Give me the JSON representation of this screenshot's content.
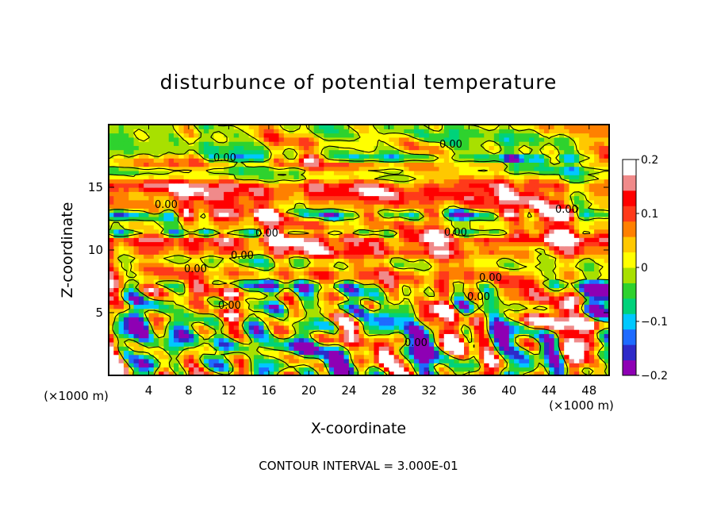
{
  "chart_data": {
    "type": "heatmap",
    "title": "disturbunce of potential temperature",
    "xlabel": "X-coordinate",
    "ylabel": "Z-coordinate",
    "xunit": "(×1000 m)",
    "yunit": "(×1000 m)",
    "x_ticks": [
      "4",
      "8",
      "12",
      "16",
      "20",
      "24",
      "28",
      "32",
      "36",
      "40",
      "44",
      "48"
    ],
    "y_ticks": [
      "5",
      "10",
      "15"
    ],
    "colorbar_ticks": [
      "0.2",
      "0.1",
      "0",
      "−0.1",
      "−0.2"
    ],
    "xlim": [
      0,
      50
    ],
    "ylim": [
      0,
      20
    ],
    "color_range": [
      -0.2,
      0.2
    ],
    "contour_label": "0.00",
    "footnote": "CONTOUR INTERVAL = 3.000E-01",
    "colors": [
      "#8e00b4",
      "#2e2ac8",
      "#1e6bff",
      "#00c8ff",
      "#00d27a",
      "#2ed22e",
      "#a8e000",
      "#ffff00",
      "#ffc800",
      "#ff8000",
      "#ff3a1a",
      "#ff0000",
      "#f08a8a",
      "#ffffff"
    ],
    "bands": [
      {
        "zmin": 17.6,
        "zmax": 20.0,
        "value": 0.0
      },
      {
        "zmin": 16.6,
        "zmax": 17.0,
        "value": 0.06
      },
      {
        "zmin": 16.0,
        "zmax": 16.6,
        "value": -0.03
      },
      {
        "zmin": 15.4,
        "zmax": 16.0,
        "value": 0.03
      },
      {
        "zmin": 14.6,
        "zmax": 15.4,
        "value": 0.14
      },
      {
        "zmin": 13.8,
        "zmax": 14.6,
        "value": 0.12
      },
      {
        "zmin": 13.2,
        "zmax": 13.8,
        "value": 0.08
      },
      {
        "zmin": 11.6,
        "zmax": 12.6,
        "value": 0.06
      },
      {
        "zmin": 10.5,
        "zmax": 11.2,
        "value": 0.17
      },
      {
        "zmin": 9.6,
        "zmax": 10.5,
        "value": 0.12
      },
      {
        "zmin": 8.6,
        "zmax": 9.6,
        "value": 0.03
      },
      {
        "zmin": 7.6,
        "zmax": 8.4,
        "value": 0.08
      }
    ]
  }
}
